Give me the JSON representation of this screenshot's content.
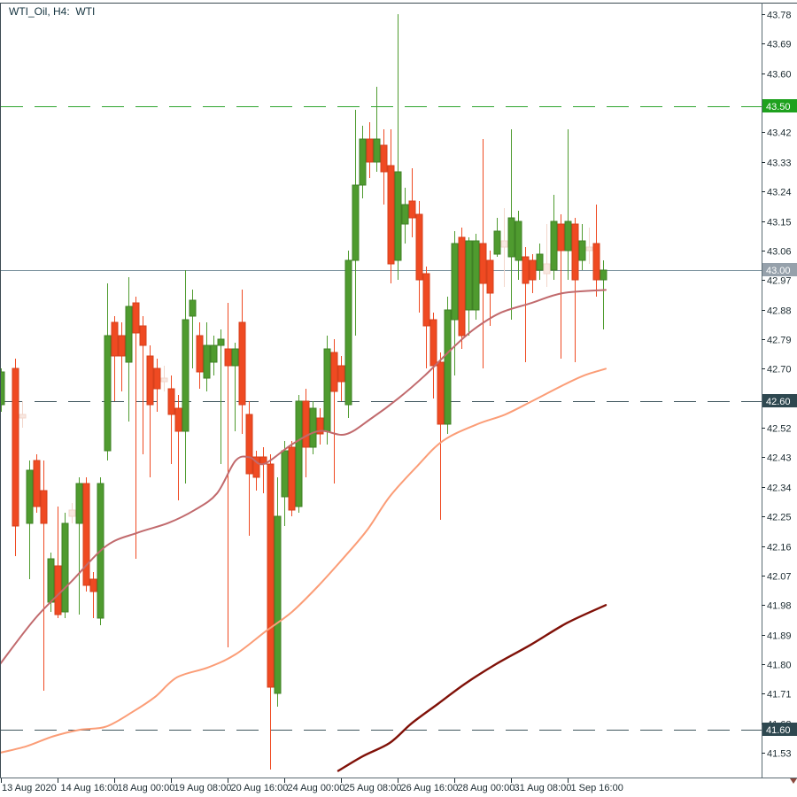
{
  "window": {
    "title": "WTI_Oil, H4:  WTI"
  },
  "colors": {
    "background": "#FFFFFF",
    "border": "#3C4A52",
    "axis_line": "#5A6A72",
    "axis_text": "#1C2B31",
    "bull": "#4F9B2F",
    "bull_edge": "#3F8126",
    "bear": "#EF4A22",
    "bear_edge": "#D6401C",
    "ghost_stroke": "#F2D6CB",
    "ghost_fill": "#F8E8E1",
    "level_green": "#2FA52F",
    "level_green_badge": "#1EA11E",
    "level_dark": "#3F565E",
    "level_dark_badge": "#2E4850",
    "price_line": "#7C939F",
    "price_badge": "#96A1AB",
    "badge_text": "#FFFFFF",
    "ma_fast": "#C16A6D",
    "ma_slow": "#FB9D77",
    "ma_slowest": "#801108",
    "shift_marker": "#8B4A3F"
  },
  "chart_data": {
    "type": "candlestick",
    "title": "WTI_Oil, H4:  WTI",
    "symbol": "WTI_Oil",
    "timeframe": "H4",
    "description": "WTI",
    "grid": false,
    "legend_position": "none",
    "ylim": [
      41.46,
      43.81
    ],
    "price_step": 0.09,
    "y_ticks": [
      43.78,
      43.69,
      43.6,
      43.42,
      43.33,
      43.24,
      43.15,
      43.06,
      42.97,
      42.88,
      42.79,
      42.7,
      42.52,
      42.43,
      42.34,
      42.25,
      42.16,
      42.07,
      41.98,
      41.89,
      41.8,
      41.71,
      41.62,
      41.53
    ],
    "y_ticks_hidden_by_badges": [
      43.51,
      42.61
    ],
    "x_ticks": [
      {
        "label": "13 Aug 2020",
        "bar": 0
      },
      {
        "label": "14 Aug 16:00",
        "bar": 8
      },
      {
        "label": "18 Aug 00:00",
        "bar": 16
      },
      {
        "label": "19 Aug 08:00",
        "bar": 24
      },
      {
        "label": "20 Aug 16:00",
        "bar": 32
      },
      {
        "label": "24 Aug 00:00",
        "bar": 40
      },
      {
        "label": "25 Aug 08:00",
        "bar": 48
      },
      {
        "label": "26 Aug 16:00",
        "bar": 56
      },
      {
        "label": "28 Aug 00:00",
        "bar": 64
      },
      {
        "label": "31 Aug 08:00",
        "bar": 72
      },
      {
        "label": "1 Sep 16:00",
        "bar": 80
      }
    ],
    "levels": [
      {
        "price": 43.5,
        "label": "43.50",
        "style": "dashed",
        "kind": "green"
      },
      {
        "price": 43.0,
        "label": "43.00",
        "style": "solid",
        "kind": "current"
      },
      {
        "price": 42.6,
        "label": "42.60",
        "style": "dashed",
        "kind": "dark"
      },
      {
        "price": 41.6,
        "label": "41.60",
        "style": "dashed",
        "kind": "dark"
      }
    ],
    "last_price": "43.00",
    "candles": [
      {
        "o": 42.59,
        "h": 42.7,
        "l": 42.57,
        "c": 42.69
      },
      null,
      {
        "o": 42.7,
        "h": 42.73,
        "l": 42.13,
        "c": 42.22
      },
      {
        "o": 42.56,
        "h": 42.6,
        "l": 42.52,
        "c": 42.55,
        "ghost": true
      },
      {
        "o": 42.23,
        "h": 42.42,
        "l": 42.06,
        "c": 42.39
      },
      {
        "o": 42.42,
        "h": 42.44,
        "l": 42.26,
        "c": 42.28
      },
      {
        "o": 42.33,
        "h": 42.42,
        "l": 41.72,
        "c": 42.23
      },
      {
        "o": 41.99,
        "h": 42.14,
        "l": 41.96,
        "c": 42.12
      },
      {
        "o": 42.1,
        "h": 42.28,
        "l": 41.94,
        "c": 41.95
      },
      {
        "o": 41.96,
        "h": 42.26,
        "l": 41.94,
        "c": 42.23
      },
      {
        "o": 42.27,
        "h": 42.29,
        "l": 42.23,
        "c": 42.25,
        "ghost": true
      },
      {
        "o": 42.23,
        "h": 42.37,
        "l": 41.95,
        "c": 42.35
      },
      {
        "o": 42.35,
        "h": 42.37,
        "l": 42.02,
        "c": 42.04
      },
      {
        "o": 42.06,
        "h": 42.08,
        "l": 41.94,
        "c": 42.02
      },
      {
        "o": 41.94,
        "h": 42.37,
        "l": 41.92,
        "c": 42.35
      },
      {
        "o": 42.45,
        "h": 42.96,
        "l": 42.42,
        "c": 42.8
      },
      {
        "o": 42.84,
        "h": 42.86,
        "l": 42.6,
        "c": 42.74
      },
      {
        "o": 42.8,
        "h": 42.84,
        "l": 42.63,
        "c": 42.74
      },
      {
        "o": 42.72,
        "h": 42.98,
        "l": 42.54,
        "c": 42.89
      },
      {
        "o": 42.9,
        "h": 42.92,
        "l": 42.12,
        "c": 42.81
      },
      {
        "o": 42.83,
        "h": 42.86,
        "l": 42.44,
        "c": 42.77
      },
      {
        "o": 42.74,
        "h": 42.77,
        "l": 42.37,
        "c": 42.59
      },
      {
        "o": 42.7,
        "h": 42.73,
        "l": 42.57,
        "c": 42.64
      },
      {
        "o": 42.67,
        "h": 42.71,
        "l": 42.63,
        "c": 42.66,
        "ghost": true
      },
      {
        "o": 42.64,
        "h": 42.68,
        "l": 42.41,
        "c": 42.56
      },
      {
        "o": 42.58,
        "h": 42.62,
        "l": 42.3,
        "c": 42.51
      },
      {
        "o": 42.51,
        "h": 43.0,
        "l": 42.35,
        "c": 42.85
      },
      {
        "o": 42.86,
        "h": 42.94,
        "l": 42.7,
        "c": 42.91
      },
      {
        "o": 42.8,
        "h": 42.84,
        "l": 42.64,
        "c": 42.69
      },
      {
        "o": 42.67,
        "h": 42.84,
        "l": 42.63,
        "c": 42.77
      },
      {
        "o": 42.72,
        "h": 42.8,
        "l": 42.68,
        "c": 42.77
      },
      {
        "o": 42.77,
        "h": 42.82,
        "l": 42.41,
        "c": 42.79
      },
      {
        "o": 42.76,
        "h": 42.9,
        "l": 41.85,
        "c": 42.71
      },
      {
        "o": 42.71,
        "h": 42.78,
        "l": 42.51,
        "c": 42.76
      },
      {
        "o": 42.84,
        "h": 42.94,
        "l": 42.5,
        "c": 42.59
      },
      {
        "o": 42.56,
        "h": 42.6,
        "l": 42.19,
        "c": 42.38
      },
      {
        "o": 42.43,
        "h": 42.45,
        "l": 42.33,
        "c": 42.37
      },
      {
        "o": 42.43,
        "h": 42.46,
        "l": 42.32,
        "c": 42.41
      },
      {
        "o": 42.41,
        "h": 42.44,
        "l": 41.48,
        "c": 41.73
      },
      {
        "o": 41.71,
        "h": 42.37,
        "l": 41.67,
        "c": 42.25
      },
      {
        "o": 42.31,
        "h": 42.48,
        "l": 42.22,
        "c": 42.45
      },
      {
        "o": 42.46,
        "h": 42.48,
        "l": 42.25,
        "c": 42.27
      },
      {
        "o": 42.28,
        "h": 42.62,
        "l": 42.26,
        "c": 42.6
      },
      {
        "o": 42.6,
        "h": 42.64,
        "l": 42.37,
        "c": 42.46
      },
      {
        "o": 42.46,
        "h": 42.6,
        "l": 42.44,
        "c": 42.58
      },
      {
        "o": 42.55,
        "h": 42.58,
        "l": 42.47,
        "c": 42.5
      },
      {
        "o": 42.51,
        "h": 42.8,
        "l": 42.47,
        "c": 42.76
      },
      {
        "o": 42.75,
        "h": 42.79,
        "l": 42.35,
        "c": 42.63
      },
      {
        "o": 42.71,
        "h": 42.74,
        "l": 42.6,
        "c": 42.66
      },
      {
        "o": 42.59,
        "h": 43.06,
        "l": 42.55,
        "c": 43.03
      },
      {
        "o": 43.03,
        "h": 43.49,
        "l": 42.8,
        "c": 43.26
      },
      {
        "o": 43.26,
        "h": 43.44,
        "l": 43.22,
        "c": 43.4
      },
      {
        "o": 43.4,
        "h": 43.45,
        "l": 43.28,
        "c": 43.33
      },
      {
        "o": 43.33,
        "h": 43.56,
        "l": 43.3,
        "c": 43.4
      },
      {
        "o": 43.38,
        "h": 43.43,
        "l": 43.2,
        "c": 43.3
      },
      {
        "o": 43.32,
        "h": 43.43,
        "l": 42.96,
        "c": 43.02
      },
      {
        "o": 43.03,
        "h": 43.78,
        "l": 42.97,
        "c": 43.3
      },
      {
        "o": 43.14,
        "h": 43.25,
        "l": 43.08,
        "c": 43.2
      },
      {
        "o": 43.21,
        "h": 43.31,
        "l": 43.1,
        "c": 43.16
      },
      {
        "o": 43.17,
        "h": 43.21,
        "l": 42.87,
        "c": 42.97
      },
      {
        "o": 42.99,
        "h": 43.01,
        "l": 42.7,
        "c": 42.83
      },
      {
        "o": 42.85,
        "h": 42.87,
        "l": 42.61,
        "c": 42.71
      },
      {
        "o": 42.72,
        "h": 42.75,
        "l": 42.24,
        "c": 42.53
      },
      {
        "o": 42.53,
        "h": 42.92,
        "l": 42.5,
        "c": 42.88
      },
      {
        "o": 42.85,
        "h": 43.12,
        "l": 42.68,
        "c": 43.08
      },
      {
        "o": 43.1,
        "h": 43.13,
        "l": 42.76,
        "c": 42.8
      },
      {
        "o": 42.88,
        "h": 43.1,
        "l": 42.8,
        "c": 43.09
      },
      {
        "o": 42.88,
        "h": 43.11,
        "l": 42.85,
        "c": 43.09
      },
      {
        "o": 43.08,
        "h": 43.4,
        "l": 42.7,
        "c": 42.96
      },
      {
        "o": 43.03,
        "h": 43.06,
        "l": 42.83,
        "c": 42.93
      },
      {
        "o": 43.05,
        "h": 43.16,
        "l": 43.04,
        "c": 43.12
      },
      {
        "o": 43.09,
        "h": 43.19,
        "l": 42.95,
        "c": 43.07,
        "ghost": true
      },
      {
        "o": 43.04,
        "h": 43.43,
        "l": 42.85,
        "c": 43.16
      },
      {
        "o": 43.03,
        "h": 43.18,
        "l": 42.97,
        "c": 43.15
      },
      {
        "o": 43.04,
        "h": 43.07,
        "l": 42.72,
        "c": 42.96
      },
      {
        "o": 43.03,
        "h": 43.05,
        "l": 42.93,
        "c": 42.97
      },
      {
        "o": 43.0,
        "h": 43.08,
        "l": 42.97,
        "c": 43.05
      },
      {
        "o": 43.02,
        "h": 43.14,
        "l": 42.95,
        "c": 42.99,
        "ghost": true
      },
      {
        "o": 43.0,
        "h": 43.23,
        "l": 42.97,
        "c": 43.15
      },
      {
        "o": 43.14,
        "h": 43.17,
        "l": 42.73,
        "c": 43.06
      },
      {
        "o": 43.06,
        "h": 43.43,
        "l": 42.97,
        "c": 43.15
      },
      {
        "o": 43.14,
        "h": 43.16,
        "l": 42.72,
        "c": 42.97
      },
      {
        "o": 43.03,
        "h": 43.14,
        "l": 43.0,
        "c": 43.09
      },
      {
        "o": 43.07,
        "h": 43.13,
        "l": 43.02,
        "c": 43.06,
        "ghost": true
      },
      {
        "o": 43.08,
        "h": 43.2,
        "l": 42.92,
        "c": 42.97
      },
      {
        "o": 42.97,
        "h": 43.03,
        "l": 42.82,
        "c": 43.0
      }
    ],
    "ma_lines": [
      {
        "name": "ma-fast",
        "color_key": "ma_fast",
        "width": 2,
        "points": [
          [
            0,
            41.8
          ],
          [
            40,
            41.94
          ],
          [
            80,
            42.05
          ],
          [
            120,
            42.16
          ],
          [
            155,
            42.2
          ],
          [
            190,
            42.23
          ],
          [
            220,
            42.27
          ],
          [
            245,
            42.32
          ],
          [
            266,
            42.42
          ],
          [
            282,
            42.43
          ],
          [
            298,
            42.41
          ],
          [
            330,
            42.47
          ],
          [
            360,
            42.51
          ],
          [
            390,
            42.5
          ],
          [
            420,
            42.55
          ],
          [
            450,
            42.61
          ],
          [
            480,
            42.68
          ],
          [
            510,
            42.76
          ],
          [
            535,
            42.82
          ],
          [
            565,
            42.87
          ],
          [
            600,
            42.9
          ],
          [
            635,
            42.93
          ],
          [
            684,
            42.94
          ]
        ]
      },
      {
        "name": "ma-slow",
        "color_key": "ma_slow",
        "width": 2,
        "points": [
          [
            0,
            41.53
          ],
          [
            30,
            41.55
          ],
          [
            60,
            41.58
          ],
          [
            90,
            41.6
          ],
          [
            120,
            41.61
          ],
          [
            150,
            41.655
          ],
          [
            175,
            41.7
          ],
          [
            200,
            41.76
          ],
          [
            235,
            41.79
          ],
          [
            266,
            41.83
          ],
          [
            300,
            41.9
          ],
          [
            330,
            41.96
          ],
          [
            360,
            42.04
          ],
          [
            390,
            42.13
          ],
          [
            415,
            42.21
          ],
          [
            440,
            42.31
          ],
          [
            470,
            42.4
          ],
          [
            500,
            42.48
          ],
          [
            538,
            42.53
          ],
          [
            570,
            42.56
          ],
          [
            600,
            42.6
          ],
          [
            636,
            42.65
          ],
          [
            660,
            42.68
          ],
          [
            684,
            42.7
          ]
        ]
      },
      {
        "name": "ma-slowest",
        "color_key": "ma_slowest",
        "width": 2.4,
        "points": [
          [
            382,
            41.475
          ],
          [
            410,
            41.52
          ],
          [
            440,
            41.56
          ],
          [
            465,
            41.62
          ],
          [
            495,
            41.68
          ],
          [
            525,
            41.74
          ],
          [
            560,
            41.8
          ],
          [
            600,
            41.86
          ],
          [
            640,
            41.925
          ],
          [
            684,
            41.98
          ]
        ]
      }
    ]
  }
}
